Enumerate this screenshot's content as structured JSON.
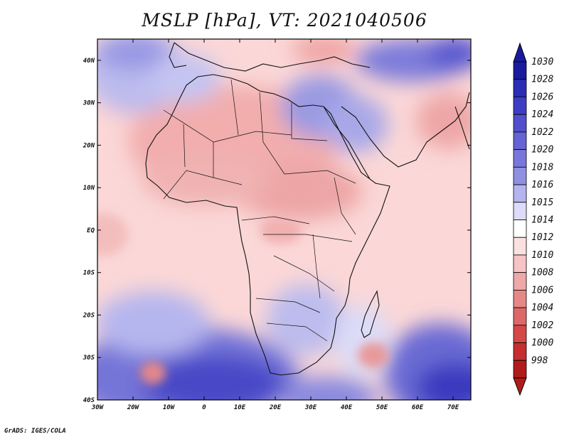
{
  "title": "MSLP [hPa], VT: 2021040506",
  "credit": "GrADS: IGES/COLA",
  "map": {
    "lon_range": [
      -30,
      75
    ],
    "lat_range": [
      -40,
      45
    ],
    "lat_ticks": [
      "40N",
      "30N",
      "20N",
      "10N",
      "EQ",
      "10S",
      "20S",
      "30S",
      "40S"
    ],
    "lon_ticks": [
      "30W",
      "20W",
      "10W",
      "0",
      "10E",
      "20E",
      "30E",
      "40E",
      "50E",
      "60E",
      "70E"
    ]
  },
  "colorbar": {
    "levels": [
      "1030",
      "1028",
      "1026",
      "1024",
      "1022",
      "1020",
      "1018",
      "1016",
      "1015",
      "1014",
      "1012",
      "1010",
      "1008",
      "1006",
      "1004",
      "1002",
      "1000",
      "998"
    ],
    "colors": [
      "#1a1a9e",
      "#2c2cb5",
      "#3d3dc4",
      "#5050cc",
      "#6464d4",
      "#7878dc",
      "#9090e2",
      "#b4b4ee",
      "#dcdcf8",
      "#ffffff",
      "#fbe0e0",
      "#f6c4c4",
      "#eea8a8",
      "#e68888",
      "#de6868",
      "#d44848",
      "#c42e2e",
      "#b01c1c"
    ]
  }
}
